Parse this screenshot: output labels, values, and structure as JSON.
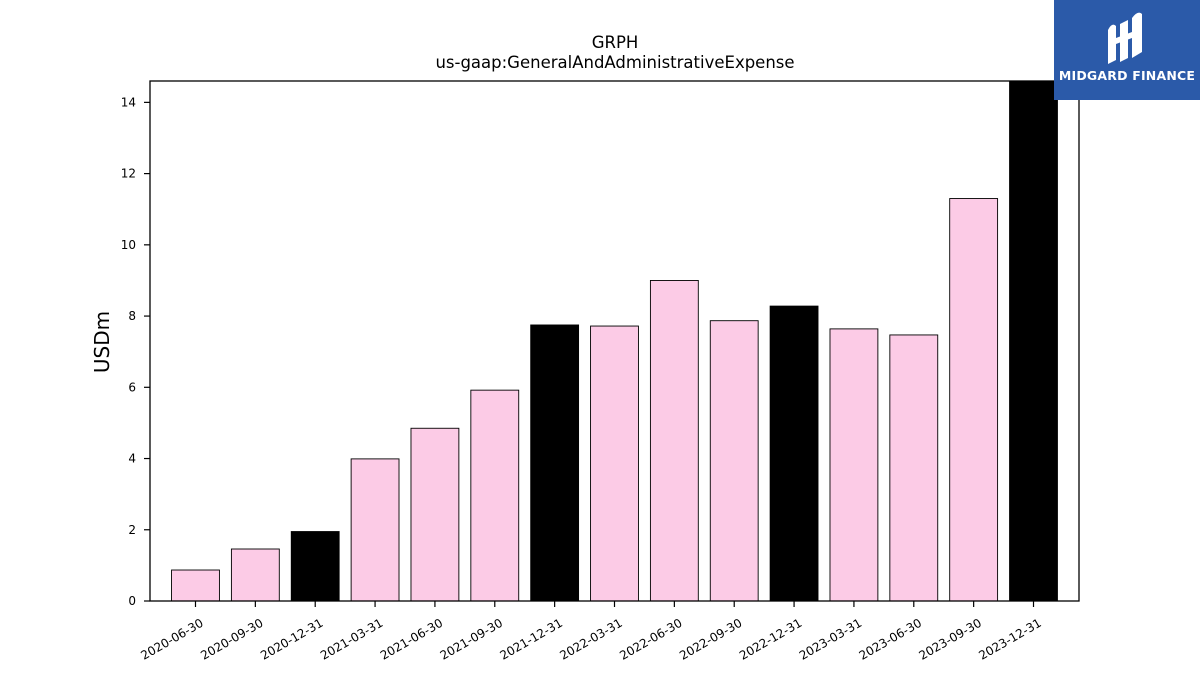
{
  "brand": {
    "name": "MIDGARD FINANCE",
    "logo_icon": "midgard-logo-mark",
    "bg_color": "#2b5aa9"
  },
  "chart_data": {
    "type": "bar",
    "title": "GRPH",
    "subtitle": "us-gaap:GeneralAndAdministrativeExpense",
    "xlabel": "",
    "ylabel": "USDm",
    "ylim": [
      0,
      14.6
    ],
    "yticks": [
      0,
      2,
      4,
      6,
      8,
      10,
      12,
      14
    ],
    "grid": false,
    "categories": [
      "2020-06-30",
      "2020-09-30",
      "2020-12-31",
      "2021-03-31",
      "2021-06-30",
      "2021-09-30",
      "2021-12-31",
      "2022-03-31",
      "2022-06-30",
      "2022-09-30",
      "2022-12-31",
      "2023-03-31",
      "2023-06-30",
      "2023-09-30",
      "2023-12-31"
    ],
    "values": [
      0.87,
      1.46,
      1.95,
      3.99,
      4.85,
      5.92,
      7.75,
      7.72,
      9.0,
      7.87,
      8.28,
      7.64,
      7.47,
      11.3,
      14.6
    ],
    "colors": [
      "#fccbe6",
      "#fccbe6",
      "#000000",
      "#fccbe6",
      "#fccbe6",
      "#fccbe6",
      "#000000",
      "#fccbe6",
      "#fccbe6",
      "#fccbe6",
      "#000000",
      "#fccbe6",
      "#fccbe6",
      "#fccbe6",
      "#000000"
    ],
    "quarter_color": "#fccbe6",
    "year_end_color": "#000000"
  }
}
